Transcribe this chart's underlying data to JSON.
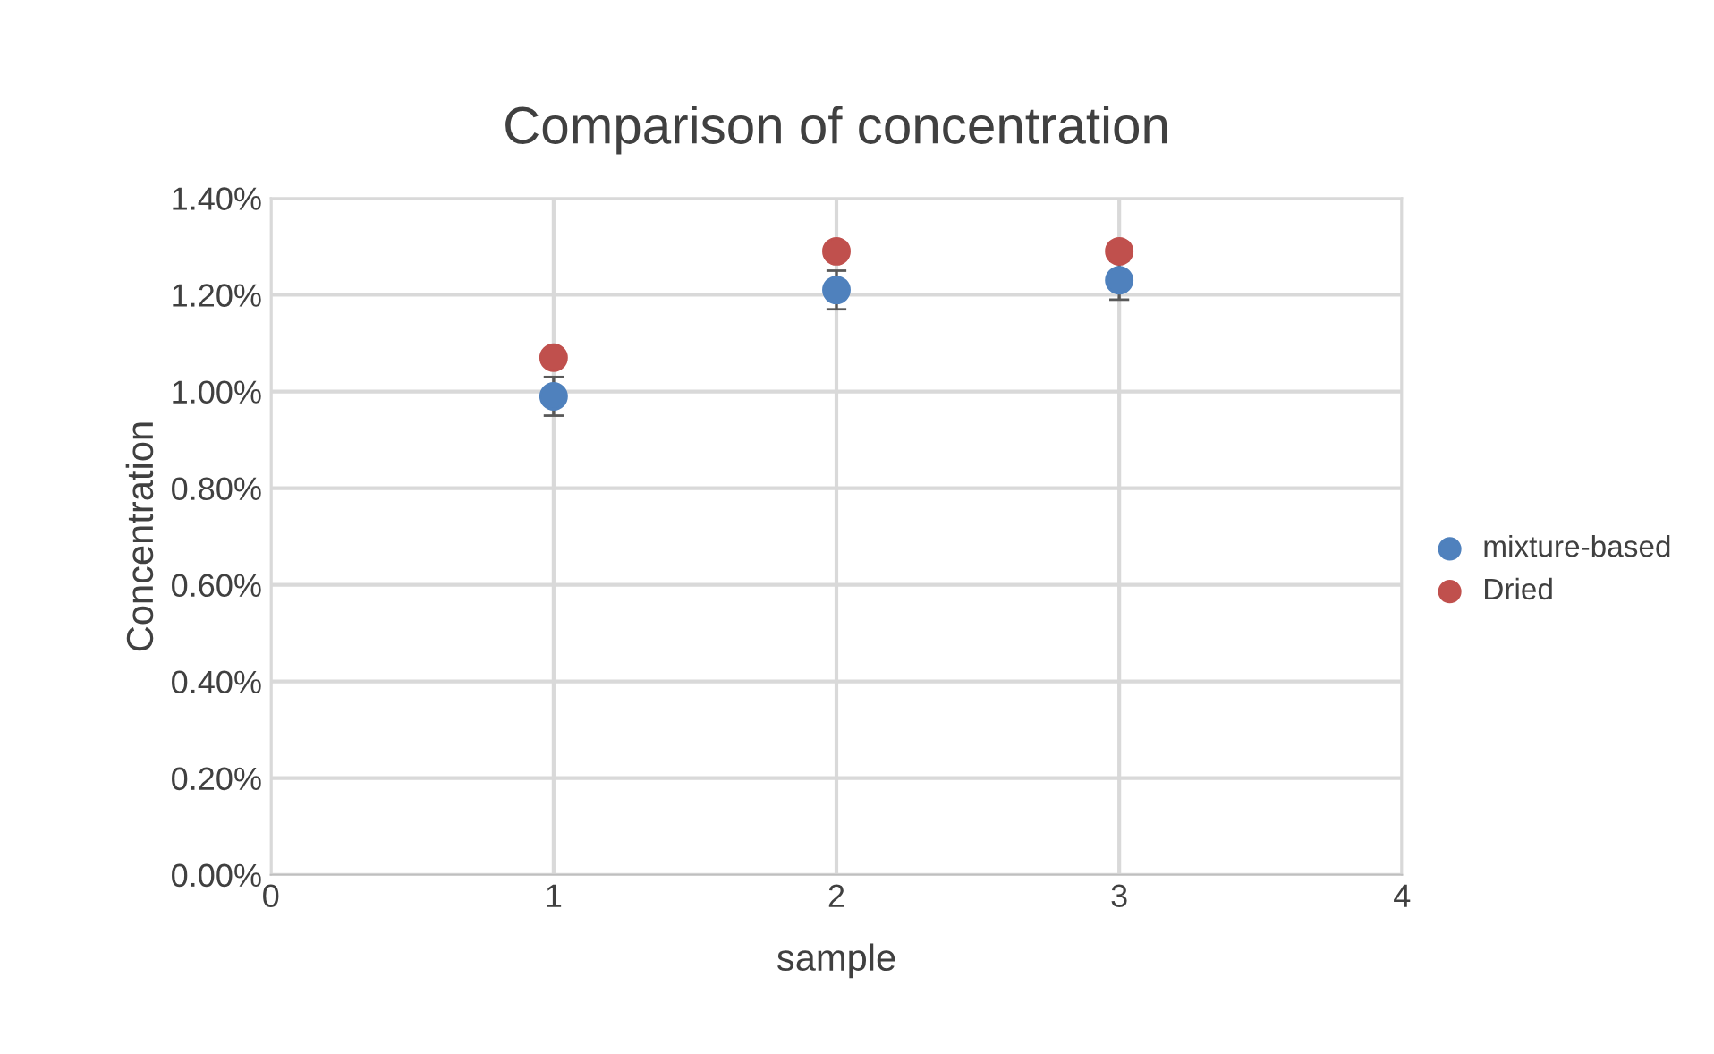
{
  "chart_data": {
    "type": "scatter",
    "title": "Comparison of concentration",
    "xlabel": "sample",
    "ylabel": "Concentration",
    "x": [
      1,
      2,
      3
    ],
    "series": [
      {
        "name": "mixture-based",
        "color": "#4f81bd",
        "values": [
          0.99,
          1.21,
          1.23
        ],
        "errors": [
          0.04,
          0.04,
          0.04
        ]
      },
      {
        "name": "Dried",
        "color": "#c0504d",
        "values": [
          1.07,
          1.29,
          1.29
        ]
      }
    ],
    "xlim": [
      0,
      4
    ],
    "xticks": [
      0,
      1,
      2,
      3,
      4
    ],
    "ylim": [
      0,
      1.4
    ],
    "yticks": [
      {
        "value": 0,
        "label": "0.00%"
      },
      {
        "value": 0.2,
        "label": "0.20%"
      },
      {
        "value": 0.4,
        "label": "0.40%"
      },
      {
        "value": 0.6,
        "label": "0.60%"
      },
      {
        "value": 0.8,
        "label": "0.80%"
      },
      {
        "value": 1.0,
        "label": "1.00%"
      },
      {
        "value": 1.2,
        "label": "1.20%"
      },
      {
        "value": 1.4,
        "label": "1.40%"
      }
    ],
    "grid": true,
    "legend": "right",
    "marker": "circle"
  }
}
